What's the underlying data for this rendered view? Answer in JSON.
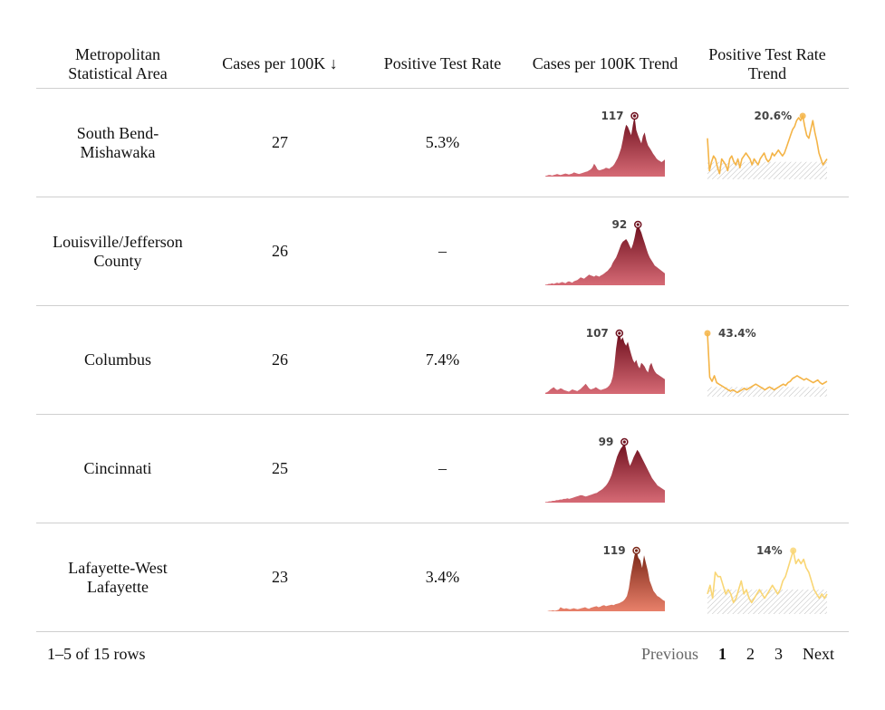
{
  "table": {
    "headers": {
      "msa": "Metropolitan Statistical Area",
      "cases": "Cases per 100K ↓",
      "ptr": "Positive Test Rate",
      "cases_trend": "Cases per 100K Trend",
      "ptr_trend": "Positive Test Rate Trend"
    },
    "rows": [
      {
        "msa": "South Bend-Mishawaka",
        "cases": "27",
        "ptr": "5.3%",
        "cases_trend": {
          "peak_label": "117",
          "peak_value": 117,
          "max": 117,
          "colors": [
            "#6e0f1d",
            "#d66a75"
          ],
          "values": [
            1,
            2,
            3,
            3,
            2,
            3,
            4,
            5,
            4,
            3,
            4,
            5,
            6,
            5,
            4,
            5,
            6,
            8,
            7,
            6,
            5,
            6,
            7,
            8,
            9,
            10,
            12,
            14,
            18,
            25,
            20,
            14,
            12,
            13,
            14,
            15,
            17,
            16,
            15,
            18,
            20,
            24,
            30,
            36,
            45,
            55,
            70,
            88,
            100,
            96,
            88,
            80,
            100,
            117,
            90,
            80,
            72,
            64,
            78,
            85,
            70,
            60,
            55,
            50,
            44,
            40,
            35,
            32,
            30,
            28,
            30,
            33
          ]
        },
        "ptr_trend": {
          "peak_label": "20.6%",
          "peak_value": 20.6,
          "max": 20.6,
          "color": "#f4b447",
          "threshold": 5,
          "values": [
            13,
            2,
            5,
            7,
            6,
            3,
            1,
            6,
            5,
            4,
            2,
            6,
            7,
            5,
            4,
            6,
            3,
            6,
            7,
            8,
            7,
            6,
            4,
            6,
            5,
            4,
            6,
            7,
            8,
            6,
            5,
            6,
            8,
            7,
            8,
            9,
            8,
            7,
            8,
            10,
            12,
            14,
            16,
            17,
            19,
            20,
            19,
            20.6,
            17,
            14,
            13,
            16,
            19,
            15,
            12,
            8,
            6,
            4,
            5,
            6
          ]
        }
      },
      {
        "msa": "Louisville/Jefferson County",
        "cases": "26",
        "ptr": "–",
        "cases_trend": {
          "peak_label": "92",
          "peak_value": 92,
          "max": 92,
          "colors": [
            "#6e0f1d",
            "#d66a75"
          ],
          "values": [
            1,
            1,
            2,
            2,
            3,
            2,
            3,
            4,
            3,
            4,
            5,
            4,
            3,
            5,
            6,
            5,
            4,
            6,
            7,
            8,
            10,
            12,
            11,
            10,
            12,
            14,
            16,
            15,
            14,
            13,
            15,
            14,
            13,
            15,
            16,
            18,
            20,
            22,
            25,
            28,
            34,
            38,
            42,
            48,
            55,
            62,
            66,
            68,
            70,
            66,
            60,
            55,
            62,
            72,
            85,
            92,
            86,
            80,
            72,
            64,
            56,
            48,
            42,
            38,
            34,
            30,
            28,
            26,
            24,
            22,
            20,
            18
          ]
        }
      },
      {
        "msa": "Columbus",
        "cases": "26",
        "ptr": "7.4%",
        "cases_trend": {
          "peak_label": "107",
          "peak_value": 107,
          "max": 107,
          "colors": [
            "#6e0f1d",
            "#d66a75"
          ],
          "values": [
            2,
            3,
            5,
            8,
            10,
            12,
            9,
            7,
            8,
            10,
            9,
            7,
            6,
            5,
            4,
            6,
            8,
            7,
            6,
            5,
            7,
            9,
            12,
            15,
            18,
            14,
            10,
            8,
            9,
            10,
            12,
            10,
            8,
            7,
            8,
            9,
            10,
            12,
            15,
            20,
            30,
            50,
            80,
            100,
            107,
            95,
            100,
            90,
            85,
            92,
            80,
            70,
            60,
            55,
            60,
            50,
            45,
            55,
            52,
            48,
            42,
            38,
            50,
            55,
            46,
            40,
            36,
            34,
            32,
            30,
            28,
            26
          ]
        },
        "ptr_trend": {
          "peak_label": "43.4%",
          "peak_value": 43.4,
          "max": 43.4,
          "color": "#f4b447",
          "threshold": 5,
          "values": [
            43.4,
            12,
            9,
            13,
            8,
            7,
            6,
            5,
            4,
            3,
            2,
            3,
            2,
            1,
            2,
            3,
            4,
            3,
            4,
            5,
            6,
            7,
            6,
            5,
            4,
            3,
            4,
            5,
            4,
            3,
            4,
            5,
            6,
            7,
            6,
            8,
            9,
            11,
            12,
            13,
            12,
            11,
            10,
            11,
            10,
            9,
            8,
            9,
            10,
            8,
            7,
            8,
            9
          ]
        }
      },
      {
        "msa": "Cincinnati",
        "cases": "25",
        "ptr": "–",
        "cases_trend": {
          "peak_label": "99",
          "peak_value": 99,
          "max": 99,
          "colors": [
            "#6e0f1d",
            "#d66a75"
          ],
          "values": [
            1,
            1,
            2,
            2,
            3,
            3,
            4,
            4,
            5,
            5,
            6,
            6,
            7,
            6,
            7,
            8,
            9,
            10,
            11,
            12,
            12,
            11,
            10,
            11,
            12,
            13,
            14,
            15,
            16,
            18,
            20,
            22,
            25,
            28,
            32,
            38,
            45,
            55,
            65,
            75,
            82,
            88,
            92,
            99,
            85,
            70,
            60,
            66,
            74,
            80,
            86,
            82,
            76,
            70,
            64,
            58,
            52,
            46,
            40,
            36,
            32,
            28,
            26,
            24,
            22,
            20
          ]
        }
      },
      {
        "msa": "Lafayette-West Lafayette",
        "cases": "23",
        "ptr": "3.4%",
        "cases_trend": {
          "peak_label": "119",
          "peak_value": 119,
          "max": 119,
          "colors": [
            "#7a2616",
            "#e8806a"
          ],
          "values": [
            0,
            0,
            1,
            1,
            2,
            1,
            2,
            3,
            8,
            6,
            5,
            6,
            5,
            4,
            5,
            6,
            5,
            4,
            5,
            6,
            7,
            8,
            6,
            5,
            7,
            8,
            9,
            10,
            8,
            9,
            11,
            12,
            10,
            11,
            12,
            13,
            12,
            14,
            15,
            16,
            18,
            20,
            24,
            30,
            45,
            70,
            90,
            110,
            119,
            105,
            100,
            85,
            110,
            95,
            80,
            60,
            50,
            40,
            35,
            30,
            28,
            25,
            22,
            20
          ]
        },
        "ptr_trend": {
          "peak_label": "14%",
          "peak_value": 14,
          "max": 14,
          "color": "#f9d675",
          "threshold": 5,
          "values": [
            4,
            6,
            3,
            9,
            8,
            8,
            6,
            4,
            5,
            4,
            2,
            3,
            5,
            7,
            4,
            5,
            3,
            2,
            3,
            4,
            5,
            4,
            3,
            4,
            5,
            6,
            5,
            4,
            5,
            7,
            8,
            10,
            12,
            14,
            11,
            12,
            11,
            12,
            10,
            9,
            7,
            5,
            4,
            3,
            4,
            3,
            4
          ]
        }
      }
    ]
  },
  "footer": {
    "rows_info": "1–5 of 15 rows",
    "prev": "Previous",
    "pages": [
      "1",
      "2",
      "3"
    ],
    "next": "Next"
  }
}
